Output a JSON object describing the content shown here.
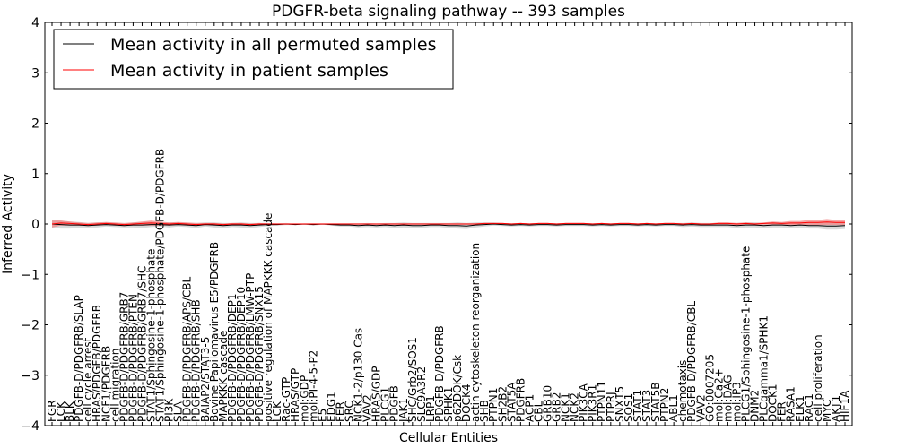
{
  "chart_data": {
    "type": "line",
    "title": "PDGFR-beta signaling pathway -- 393 samples",
    "xlabel": "Cellular Entities",
    "ylabel": "Inferred Activity",
    "ylim": [
      -4,
      4
    ],
    "yticks": [
      "4",
      "3",
      "2",
      "1",
      "0",
      "−1",
      "−2",
      "−3",
      "−4"
    ],
    "ytick_values": [
      4,
      3,
      2,
      1,
      0,
      -1,
      -2,
      -3,
      -4
    ],
    "legend": {
      "placement": "top-left",
      "entries": [
        {
          "label": "Mean activity in all permuted samples",
          "color": "#000000"
        },
        {
          "label": "Mean activity in patient samples",
          "color": "#ff0000"
        }
      ]
    },
    "colors": {
      "permuted_line": "#000000",
      "permuted_band": "#cccccc",
      "patient_line": "#ff0000",
      "patient_band": "#f08080"
    },
    "categories": [
      "FGR",
      "LCK",
      "BLK",
      "PDGFB-D/PDGFRB/SLAP",
      "cell cycle arrest",
      "HRAS/PDGFB/PDGFRB",
      "NCF1/PDGFRB",
      "cell migration",
      "PDGFB-D/PDGFRB/GRB7",
      "PDGFB-D/PDGFRB/PTEN",
      "PDGFB-D/PDGFRB/GRB7/SHC",
      "STAT1/Sphingosine-1-phosphate",
      "STAT1/Sphingosine-1-phosphate/PDGFB-D/PDGFRB",
      "PI3K",
      "SLA",
      "PDGFB-D/PDGFRB/APS/CBL",
      "PDGFB-D/PDGFRB/SHB",
      "BAIAP2/STAT3-5",
      "Bovine Papilomavirus E5/PDGFRB",
      "MAPKKK cascade",
      "PDGFB-D/PDGFRB/DEP1",
      "PDGFB-D/PDGFRB/DEP10",
      "PDGFB-D/PDGFRB/LMW-PTP",
      "PDGFB-D/PDGFRB/SNX15",
      "positive regulation of MAPKKK cascade",
      "LCK",
      "Rac-GTP",
      "HRAS/GTP",
      "mol:GDP",
      "mol:PI-4-5-P2",
      "E5",
      "EDG1",
      "FER",
      "SRC",
      "NCK1-2/p130 Cas",
      "VAV2",
      "HRAS/GDP",
      "PLCG1",
      "PDGFB",
      "JAK1",
      "SHC/Grb2/SOS1",
      "SLC9A3R2",
      "LRP1",
      "PDGFB-D/PDGFRB",
      "SPHK1",
      "p62DOK/Csk",
      "DOCK4",
      "actin cytoskeleton reorganization",
      "SHB",
      "PTPN1",
      "SH2B2",
      "STAT5A",
      "PDGFRB",
      "ACP1",
      "CBL",
      "GRB10",
      "GRB2",
      "NCK1",
      "NCK2",
      "PIK3CA",
      "PIK3R1",
      "PTPN11",
      "PTPRJ",
      "SNX15",
      "SOS1",
      "STAT1",
      "STAT3",
      "STAT5B",
      "PTPN2",
      "ABL1",
      "chemotaxis",
      "PDGFB-D/PDGFRB/CBL",
      "VAV2",
      "GO:0007205",
      "mol:Ca2+",
      "mol:DAG",
      "mol:IP3",
      "PLCG1/Sphingosine-1-phosphate",
      "DNM2",
      "PLCgamma1/SPHK1",
      "DOCK1",
      "FER",
      "RASA1",
      "ELK1",
      "RAC1",
      "cell proliferation",
      "MYC",
      "AKT1",
      "HIF1A"
    ],
    "series": [
      {
        "name": "Mean activity in all permuted samples",
        "values": [
          0.0,
          -0.01,
          -0.02,
          -0.02,
          -0.03,
          -0.02,
          -0.01,
          -0.02,
          -0.03,
          -0.02,
          -0.02,
          -0.01,
          -0.01,
          -0.02,
          -0.01,
          -0.02,
          -0.03,
          -0.01,
          -0.02,
          -0.03,
          -0.02,
          -0.02,
          -0.03,
          -0.02,
          -0.01,
          -0.01,
          0.0,
          -0.01,
          0.0,
          -0.01,
          0.0,
          -0.01,
          -0.02,
          -0.02,
          -0.03,
          -0.02,
          -0.03,
          -0.02,
          -0.03,
          -0.02,
          -0.03,
          -0.03,
          -0.02,
          -0.02,
          -0.03,
          -0.03,
          -0.04,
          -0.02,
          -0.01,
          0.0,
          -0.01,
          -0.02,
          -0.01,
          -0.02,
          -0.01,
          -0.01,
          -0.02,
          -0.01,
          -0.01,
          -0.01,
          -0.02,
          -0.01,
          -0.02,
          -0.01,
          -0.01,
          -0.02,
          -0.01,
          -0.02,
          -0.01,
          -0.01,
          -0.02,
          -0.01,
          -0.02,
          -0.02,
          -0.02,
          -0.02,
          -0.03,
          -0.02,
          -0.02,
          -0.03,
          -0.02,
          -0.02,
          -0.03,
          -0.02,
          -0.03,
          -0.03,
          -0.04,
          -0.04,
          -0.03
        ],
        "band": [
          0.08,
          0.08,
          0.07,
          0.06,
          0.05,
          0.05,
          0.04,
          0.04,
          0.04,
          0.05,
          0.06,
          0.05,
          0.04,
          0.05,
          0.04,
          0.04,
          0.05,
          0.04,
          0.05,
          0.05,
          0.04,
          0.05,
          0.05,
          0.04,
          0.03,
          0.02,
          0.02,
          0.01,
          0.01,
          0.02,
          0.01,
          0.02,
          0.03,
          0.03,
          0.04,
          0.04,
          0.04,
          0.04,
          0.05,
          0.05,
          0.05,
          0.05,
          0.04,
          0.04,
          0.05,
          0.06,
          0.06,
          0.05,
          0.04,
          0.03,
          0.03,
          0.03,
          0.03,
          0.03,
          0.03,
          0.03,
          0.03,
          0.03,
          0.03,
          0.03,
          0.03,
          0.03,
          0.03,
          0.03,
          0.03,
          0.03,
          0.03,
          0.03,
          0.03,
          0.03,
          0.04,
          0.04,
          0.04,
          0.04,
          0.04,
          0.04,
          0.05,
          0.05,
          0.05,
          0.05,
          0.05,
          0.05,
          0.05,
          0.05,
          0.06,
          0.06,
          0.07,
          0.07,
          0.07
        ]
      },
      {
        "name": "Mean activity in patient samples",
        "values": [
          0.0,
          0.02,
          0.01,
          0.0,
          -0.01,
          0.0,
          0.01,
          0.0,
          -0.01,
          0.0,
          0.01,
          0.02,
          0.01,
          0.0,
          0.01,
          0.0,
          -0.01,
          0.0,
          0.0,
          -0.01,
          0.0,
          0.0,
          -0.01,
          0.0,
          0.0,
          0.0,
          0.0,
          0.0,
          0.0,
          0.0,
          0.0,
          0.0,
          0.0,
          0.0,
          0.0,
          0.0,
          0.0,
          0.0,
          0.0,
          0.0,
          0.0,
          0.0,
          0.0,
          0.0,
          0.0,
          0.0,
          0.0,
          0.0,
          0.01,
          0.01,
          0.01,
          0.0,
          0.01,
          0.0,
          0.01,
          0.01,
          0.0,
          0.01,
          0.01,
          0.01,
          0.0,
          0.01,
          0.0,
          0.01,
          0.01,
          0.0,
          0.01,
          0.0,
          0.01,
          0.01,
          0.0,
          0.01,
          0.0,
          0.0,
          0.01,
          0.01,
          0.0,
          0.01,
          0.0,
          0.01,
          0.02,
          0.01,
          0.02,
          0.02,
          0.03,
          0.03,
          0.04,
          0.03,
          0.03
        ],
        "band": [
          0.07,
          0.05,
          0.04,
          0.03,
          0.03,
          0.03,
          0.03,
          0.03,
          0.03,
          0.03,
          0.04,
          0.05,
          0.04,
          0.03,
          0.03,
          0.03,
          0.03,
          0.02,
          0.02,
          0.02,
          0.02,
          0.02,
          0.02,
          0.02,
          0.01,
          0.01,
          0.01,
          0.01,
          0.01,
          0.01,
          0.01,
          0.01,
          0.01,
          0.01,
          0.01,
          0.01,
          0.01,
          0.01,
          0.01,
          0.01,
          0.01,
          0.01,
          0.01,
          0.01,
          0.01,
          0.01,
          0.01,
          0.01,
          0.01,
          0.01,
          0.01,
          0.01,
          0.01,
          0.01,
          0.01,
          0.01,
          0.01,
          0.01,
          0.01,
          0.01,
          0.01,
          0.01,
          0.01,
          0.01,
          0.01,
          0.01,
          0.01,
          0.01,
          0.01,
          0.01,
          0.01,
          0.01,
          0.01,
          0.01,
          0.02,
          0.02,
          0.02,
          0.02,
          0.02,
          0.02,
          0.03,
          0.03,
          0.04,
          0.04,
          0.05,
          0.05,
          0.06,
          0.05,
          0.05
        ]
      }
    ]
  }
}
